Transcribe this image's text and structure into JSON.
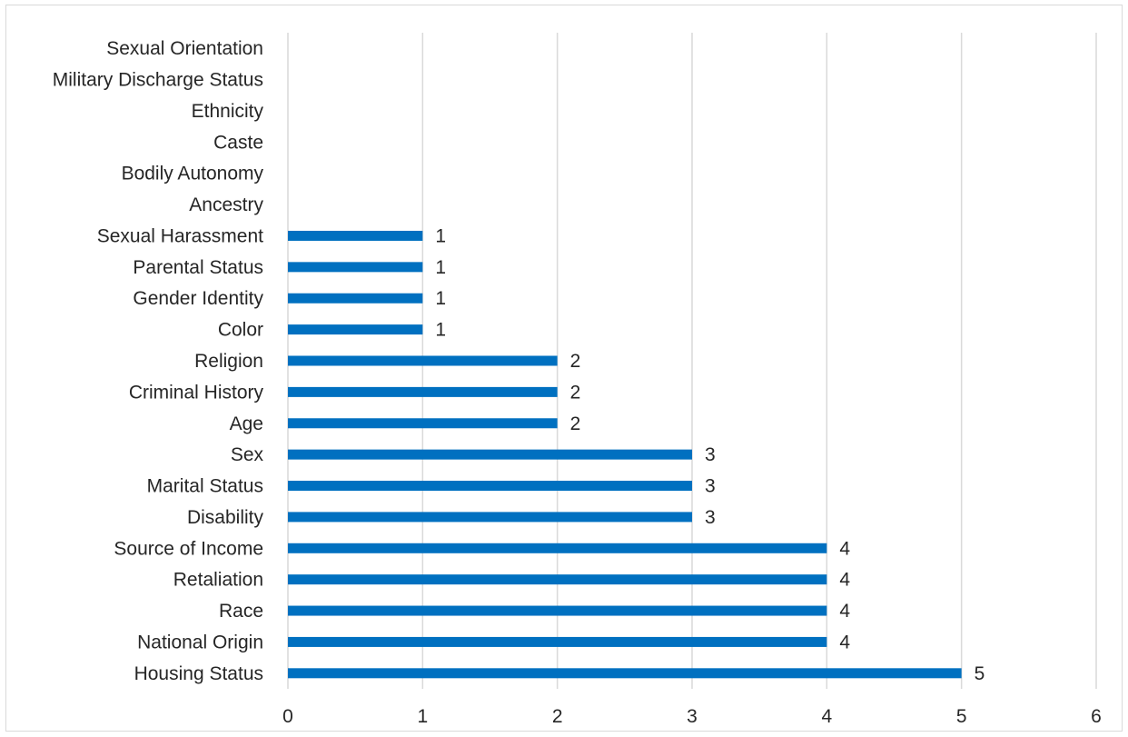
{
  "chart_data": {
    "type": "bar",
    "orientation": "horizontal",
    "title": "",
    "xlabel": "",
    "ylabel": "",
    "categories": [
      "Housing Status",
      "National Origin",
      "Race",
      "Retaliation",
      "Source of Income",
      "Disability",
      "Marital Status",
      "Sex",
      "Age",
      "Criminal History",
      "Religion",
      "Color",
      "Gender Identity",
      "Parental Status",
      "Sexual Harassment",
      "Ancestry",
      "Bodily Autonomy",
      "Caste",
      "Ethnicity",
      "Military Discharge Status",
      "Sexual Orientation"
    ],
    "values": [
      5,
      4,
      4,
      4,
      4,
      3,
      3,
      3,
      2,
      2,
      2,
      1,
      1,
      1,
      1,
      0,
      0,
      0,
      0,
      0,
      0
    ],
    "data_labels": [
      "5",
      "4",
      "4",
      "4",
      "4",
      "3",
      "3",
      "3",
      "2",
      "2",
      "2",
      "1",
      "1",
      "1",
      "1",
      "",
      "",
      "",
      "",
      "",
      ""
    ],
    "xlim": [
      0,
      6
    ],
    "xticks": [
      "0",
      "1",
      "2",
      "3",
      "4",
      "5",
      "6"
    ],
    "grid": true,
    "legend": "none",
    "colors": {
      "bar": "#0070c0",
      "grid": "#d9d9d9",
      "text": "#262626"
    }
  }
}
